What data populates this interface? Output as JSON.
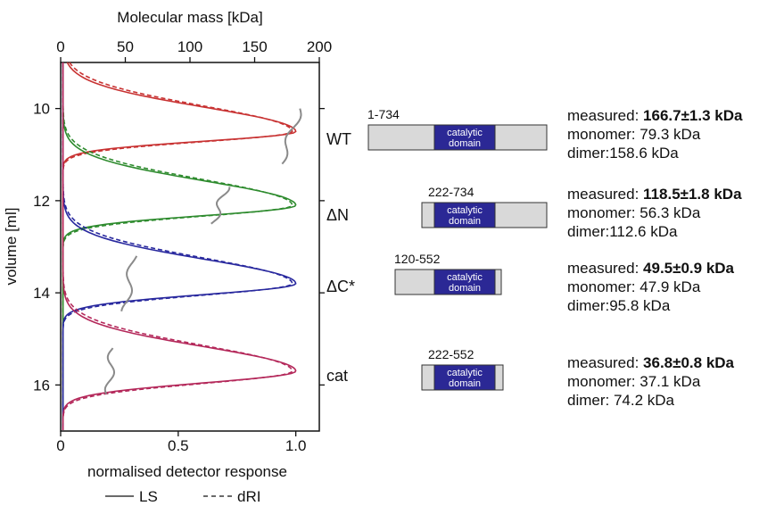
{
  "chart_data": {
    "type": "line",
    "xlabel_bottom": "normalised detector response",
    "xlabel_top": "Molecular mass [kDa]",
    "ylabel": "volume [ml]",
    "xlim_bottom": [
      0,
      1.1
    ],
    "xlim_top": [
      0,
      200
    ],
    "ylim": [
      17,
      9
    ],
    "xticks_bottom": [
      "0",
      "0.5",
      "1.0"
    ],
    "xticks_top": [
      "0",
      "50",
      "100",
      "150",
      "200"
    ],
    "yticks": [
      "10",
      "12",
      "14",
      "16"
    ],
    "legend": {
      "ls_label": "LS",
      "dri_label": "dRI"
    },
    "series": [
      {
        "name": "WT",
        "color": "#c83232",
        "peak_volume": 10.5,
        "peak_response": 1.0
      },
      {
        "name": "ΔN",
        "color": "#2e8b2e",
        "peak_volume": 12.1,
        "peak_response": 1.0
      },
      {
        "name": "ΔC*",
        "color": "#28289e",
        "peak_volume": 13.8,
        "peak_response": 1.0
      },
      {
        "name": "cat",
        "color": "#b4285a",
        "peak_volume": 15.7,
        "peak_response": 1.0
      }
    ],
    "mass_traces": [
      {
        "name": "WT",
        "volume_range": [
          10.0,
          11.2
        ],
        "mass": [
          185,
          170
        ]
      },
      {
        "name": "ΔN",
        "volume_range": [
          11.7,
          12.5
        ],
        "mass": [
          128,
          118
        ]
      },
      {
        "name": "ΔC*",
        "volume_range": [
          13.2,
          14.4
        ],
        "mass": [
          56,
          50
        ]
      },
      {
        "name": "cat",
        "volume_range": [
          15.2,
          16.2
        ],
        "mass": [
          40,
          37
        ]
      }
    ]
  },
  "constructs": [
    {
      "label": "WT",
      "range": "1-734",
      "domain_text": [
        "catalytic",
        "domain"
      ],
      "measured_label": "measured: ",
      "measured_value": "166.7±1.3 kDa",
      "monomer": "monomer: 79.3 kDa",
      "dimer": "dimer:158.6 kDa"
    },
    {
      "label": "ΔN",
      "range": "222-734",
      "domain_text": [
        "catalytic",
        "domain"
      ],
      "measured_label": "measured: ",
      "measured_value": "118.5±1.8 kDa",
      "monomer": "monomer: 56.3 kDa",
      "dimer": "dimer:112.6 kDa"
    },
    {
      "label": "ΔC*",
      "range": "120-552",
      "domain_text": [
        "catalytic",
        "domain"
      ],
      "measured_label": "measured: ",
      "measured_value": "49.5±0.9 kDa",
      "monomer": "monomer: 47.9 kDa",
      "dimer": "dimer:95.8 kDa"
    },
    {
      "label": "cat",
      "range": "222-552",
      "domain_text": [
        "catalytic",
        "domain"
      ],
      "measured_label": "measured: ",
      "measured_value": "36.8±0.8 kDa",
      "monomer": "monomer: 37.1 kDa",
      "dimer": "dimer: 74.2 kDa"
    }
  ]
}
